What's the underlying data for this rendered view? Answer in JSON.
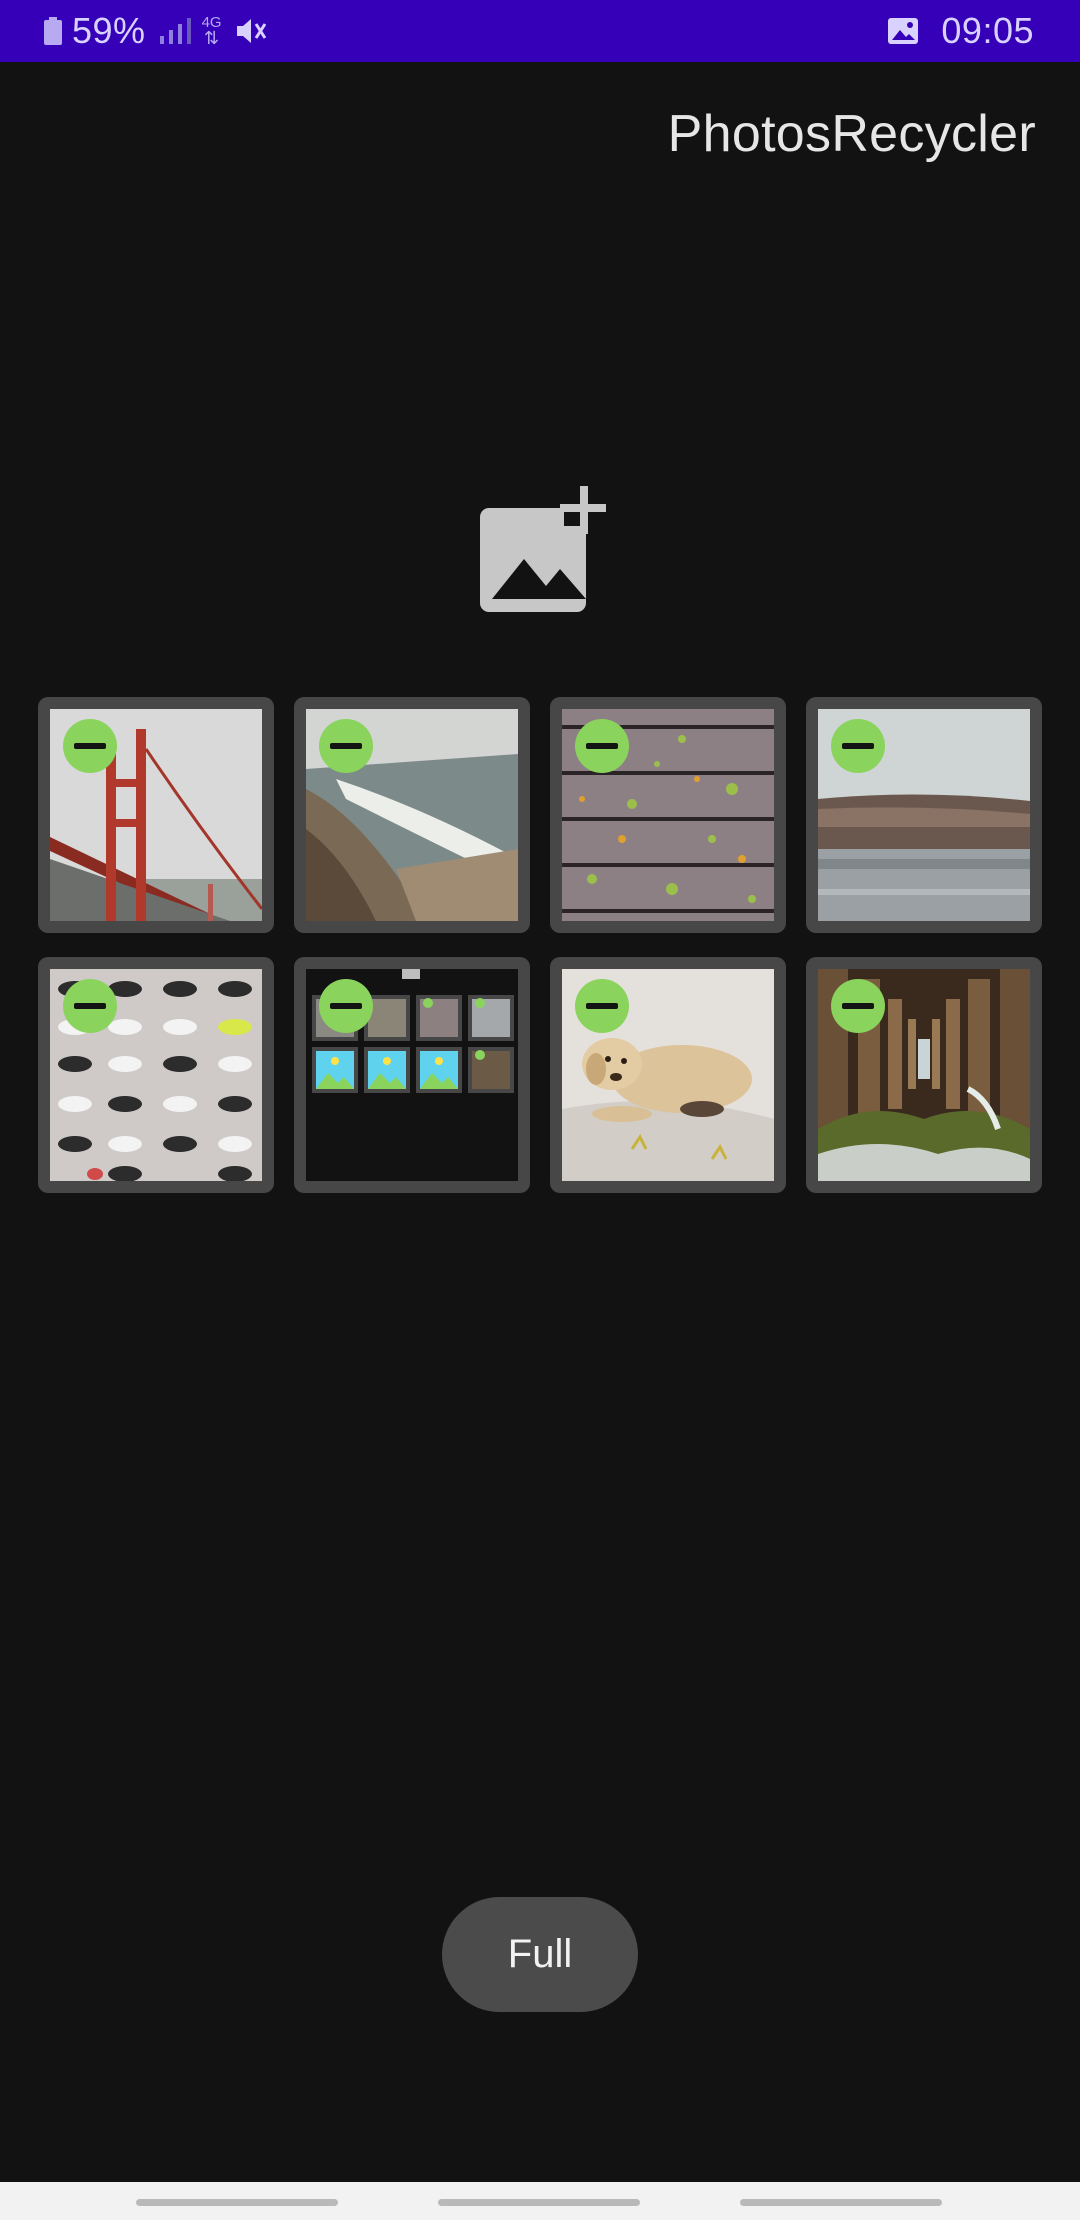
{
  "status_bar": {
    "battery_percent": "59%",
    "network_type": "4G",
    "time": "09:05"
  },
  "app": {
    "title": "PhotosRecycler"
  },
  "icons": {
    "add_photo": "add-photo-icon",
    "remove": "remove-circle-icon",
    "battery": "battery-icon",
    "signal": "signal-icon",
    "mute": "vibrate-mute-icon",
    "gallery": "gallery-notification-icon"
  },
  "photos": [
    {
      "subject": "golden-gate-bridge"
    },
    {
      "subject": "coastal-cliff-beach"
    },
    {
      "subject": "wooden-planks-leaves"
    },
    {
      "subject": "rock-breakwater"
    },
    {
      "subject": "shoe-wall"
    },
    {
      "subject": "app-screenshot"
    },
    {
      "subject": "puppy-on-bed"
    },
    {
      "subject": "pier-under-view"
    }
  ],
  "button": {
    "full_label": "Full"
  },
  "colors": {
    "status_bar": "#3500b8",
    "background": "#121212",
    "tile": "#474747",
    "remove_badge": "#8ad35c",
    "button": "#4b4b4b"
  }
}
